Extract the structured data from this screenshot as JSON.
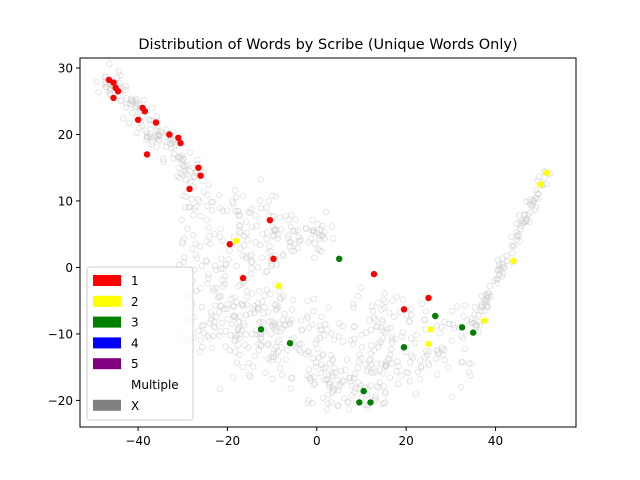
{
  "chart_data": {
    "type": "scatter",
    "title": "Distribution of Words by Scribe (Unique Words Only)",
    "xlabel": "",
    "ylabel": "",
    "xlim": [
      -53,
      58
    ],
    "ylim": [
      -24,
      31.5
    ],
    "xticks": [
      -40,
      -20,
      0,
      20,
      40
    ],
    "yticks": [
      -20,
      -10,
      0,
      10,
      20,
      30
    ],
    "grid": false,
    "legend_position": "lower-left",
    "legend": [
      {
        "label": "1",
        "color": "#ff0000"
      },
      {
        "label": "2",
        "color": "#ffff00"
      },
      {
        "label": "3",
        "color": "#008000"
      },
      {
        "label": "4",
        "color": "#0000ff"
      },
      {
        "label": "5",
        "color": "#800080"
      },
      {
        "label": "Multiple",
        "color": "#ffffff"
      },
      {
        "label": "X",
        "color": "#808080"
      }
    ],
    "series": [
      {
        "name": "1",
        "color": "#ff0000",
        "points": [
          [
            -46.5,
            28.2
          ],
          [
            -45.5,
            27.8
          ],
          [
            -45,
            27
          ],
          [
            -44.5,
            26.5
          ],
          [
            -45.5,
            25.5
          ],
          [
            -40,
            22.2
          ],
          [
            -39,
            24
          ],
          [
            -38.5,
            23.5
          ],
          [
            -36,
            21.8
          ],
          [
            -33,
            20
          ],
          [
            -31,
            19.5
          ],
          [
            -30.5,
            18.7
          ],
          [
            -38,
            17
          ],
          [
            -26.5,
            15
          ],
          [
            -26,
            13.8
          ],
          [
            -28.5,
            11.8
          ],
          [
            -10.5,
            7.1
          ],
          [
            -19.5,
            3.5
          ],
          [
            -9.7,
            1.3
          ],
          [
            -16.5,
            -1.6
          ],
          [
            12.8,
            -1
          ],
          [
            25,
            -4.6
          ],
          [
            19.5,
            -6.3
          ]
        ]
      },
      {
        "name": "2",
        "color": "#ffff00",
        "points": [
          [
            51.5,
            14.2
          ],
          [
            50,
            12.5
          ],
          [
            -18,
            4
          ],
          [
            44,
            1
          ],
          [
            -8.5,
            -2.8
          ],
          [
            37.5,
            -8
          ],
          [
            25.5,
            -9.3
          ],
          [
            25,
            -11.5
          ]
        ]
      },
      {
        "name": "3",
        "color": "#008000",
        "points": [
          [
            5,
            1.3
          ],
          [
            26.5,
            -7.3
          ],
          [
            32.5,
            -9
          ],
          [
            35,
            -9.8
          ],
          [
            -12.5,
            -9.3
          ],
          [
            -6,
            -11.4
          ],
          [
            19.5,
            -12
          ],
          [
            10.5,
            -18.6
          ],
          [
            9.5,
            -20.3
          ],
          [
            12,
            -20.3
          ]
        ]
      },
      {
        "name": "X",
        "color": "#808080",
        "points": []
      }
    ]
  }
}
